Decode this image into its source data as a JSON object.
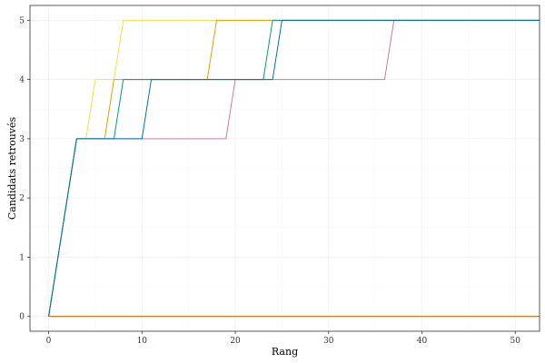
{
  "chart_data": {
    "type": "line",
    "title": "",
    "xlabel": "Rang",
    "ylabel": "Candidats retrouvés",
    "xlim": [
      -2,
      52.6
    ],
    "ylim": [
      -0.25,
      5.25
    ],
    "x_ticks": [
      0,
      10,
      20,
      30,
      40,
      50
    ],
    "y_ticks": [
      0,
      1,
      2,
      3,
      4,
      5
    ],
    "grid": true,
    "legend": "none",
    "series": [
      {
        "color": "#CC79A7",
        "points": [
          [
            0,
            0
          ],
          [
            3,
            3
          ],
          [
            19,
            3
          ],
          [
            20,
            4
          ],
          [
            36,
            4
          ],
          [
            37,
            5
          ],
          [
            52.6,
            5
          ]
        ]
      },
      {
        "color": "#F0E442",
        "points": [
          [
            0,
            0
          ],
          [
            3,
            3
          ],
          [
            4,
            3
          ],
          [
            5,
            4
          ],
          [
            7,
            4
          ],
          [
            8,
            5
          ],
          [
            52.6,
            5
          ]
        ]
      },
      {
        "color": "#E69F00",
        "points": [
          [
            0,
            0
          ],
          [
            3,
            3
          ],
          [
            6,
            3
          ],
          [
            7,
            4
          ],
          [
            17,
            4
          ],
          [
            18,
            5
          ],
          [
            52.6,
            5
          ]
        ]
      },
      {
        "color": "#009E73",
        "points": [
          [
            0,
            0
          ],
          [
            3,
            3
          ],
          [
            7,
            3
          ],
          [
            8,
            4
          ],
          [
            23,
            4
          ],
          [
            24,
            5
          ],
          [
            52.6,
            5
          ]
        ]
      },
      {
        "color": "#0072B2",
        "points": [
          [
            0,
            0
          ],
          [
            3,
            3
          ],
          [
            10,
            3
          ],
          [
            11,
            4
          ],
          [
            24,
            4
          ],
          [
            25,
            5
          ],
          [
            52.6,
            5
          ]
        ]
      },
      {
        "color": "#D55E00",
        "points": [
          [
            0,
            0
          ],
          [
            52.6,
            0
          ]
        ]
      }
    ]
  }
}
